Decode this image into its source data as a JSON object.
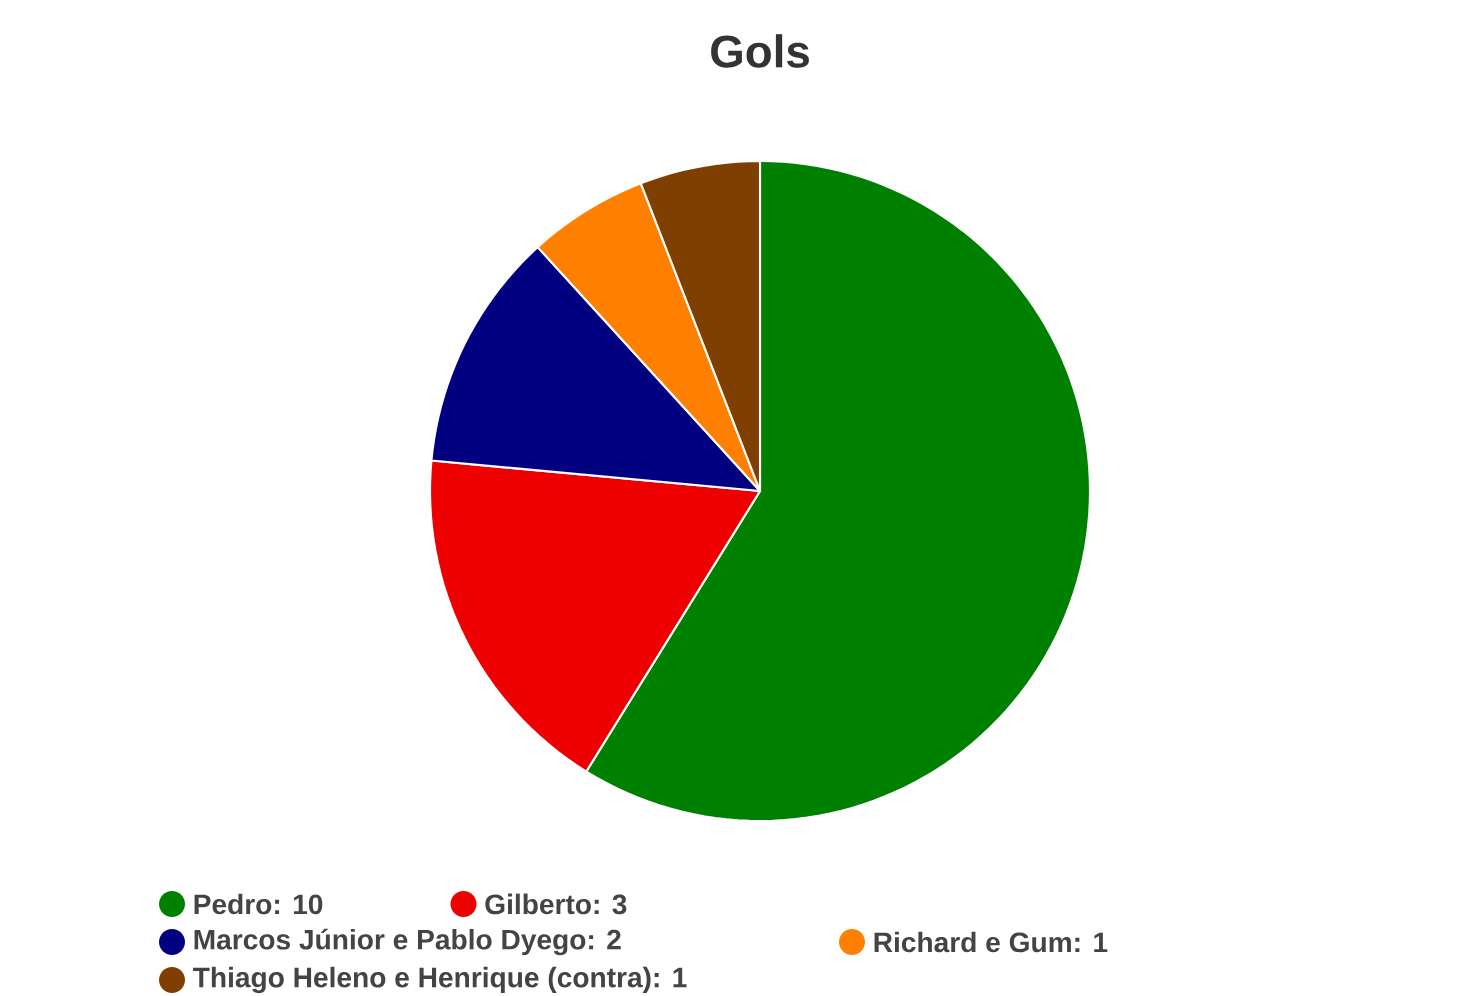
{
  "chart_data": {
    "type": "pie",
    "title": "Gols",
    "categories": [
      "Pedro: 10",
      "Gilberto: 3",
      "Marcos Júnior e Pablo Dyego: 2",
      "Richard e Gum: 1",
      "Thiago Heleno e Henrique (contra): 1"
    ],
    "values": [
      10,
      3,
      2,
      1,
      1
    ],
    "colors": [
      "#008000",
      "#ee0000",
      "#000080",
      "#ff8000",
      "#7f3f00"
    ],
    "legend": "bottom"
  }
}
